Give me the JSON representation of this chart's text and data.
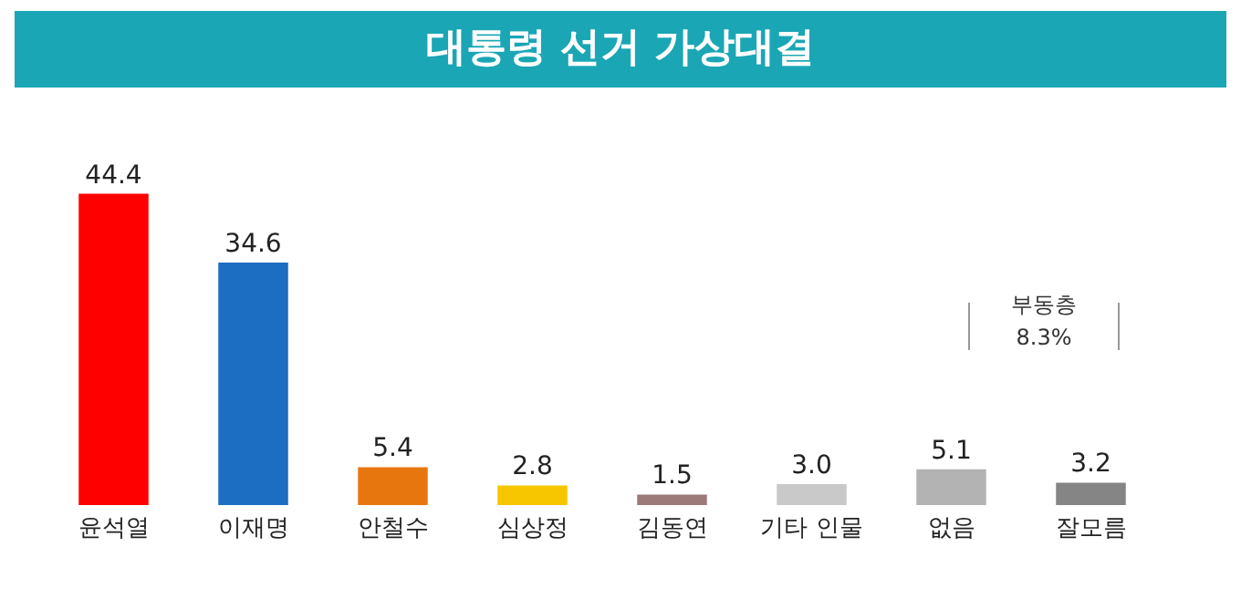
{
  "chart_data": {
    "type": "bar",
    "title": "대통령 선거 가상대결",
    "categories": [
      "윤석열",
      "이재명",
      "안철수",
      "심상정",
      "김동연",
      "기타 인물",
      "없음",
      "잘모름"
    ],
    "values": [
      44.4,
      34.6,
      5.4,
      2.8,
      1.5,
      3.0,
      5.1,
      3.2
    ],
    "colors": [
      "#fe0000",
      "#1b6ec2",
      "#e8760f",
      "#f7c600",
      "#9c7a7a",
      "#c9c9c9",
      "#b3b3b3",
      "#858585"
    ],
    "value_labels": [
      "44.4",
      "34.6",
      "5.4",
      "2.8",
      "1.5",
      "3.0",
      "5.1",
      "3.2"
    ],
    "annotations": [
      "부동층\n8.3%"
    ]
  }
}
